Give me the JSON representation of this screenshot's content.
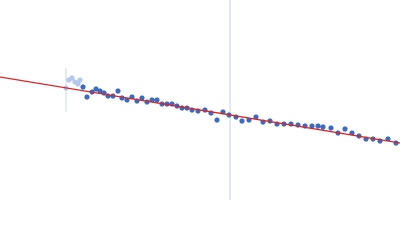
{
  "chart_data": {
    "type": "scatter",
    "xlim": [
      0,
      400
    ],
    "ylim": [
      0,
      200
    ],
    "series": [
      {
        "color": "#b3c7ea",
        "x": [
          66,
          69,
          72,
          75,
          78,
          80
        ],
        "values": [
          112,
          120,
          122,
          118,
          116,
          120
        ]
      },
      {
        "color": "#3a6bbf",
        "x": [
          83,
          87,
          92,
          96,
          100,
          104,
          108,
          113,
          118,
          122,
          127,
          132,
          137,
          142,
          147,
          152,
          157,
          162,
          167,
          172,
          177,
          182,
          187,
          192,
          198,
          205,
          211,
          217,
          223,
          229,
          236,
          242,
          249,
          256,
          263,
          270,
          277,
          284,
          291,
          298,
          305,
          312,
          318,
          323,
          331,
          338,
          345,
          352,
          359,
          366,
          373,
          380,
          388,
          396
        ],
        "values": [
          113,
          103,
          108,
          111,
          109,
          107,
          104,
          104,
          109,
          102,
          100,
          103,
          99,
          102,
          98,
          100,
          100,
          96,
          96,
          96,
          94,
          92,
          92,
          90,
          89,
          90,
          87,
          80,
          88,
          85,
          83,
          79,
          80,
          83,
          78,
          79,
          76,
          76,
          76,
          75,
          74,
          74,
          74,
          73,
          72,
          67,
          71,
          67,
          64,
          61,
          61,
          59,
          61,
          57
        ]
      }
    ],
    "fit": {
      "color": "#d62728",
      "x": [
        0,
        400
      ],
      "values": [
        123,
        57
      ]
    },
    "vline": {
      "x": 230,
      "color": "#c5d3ea"
    }
  }
}
